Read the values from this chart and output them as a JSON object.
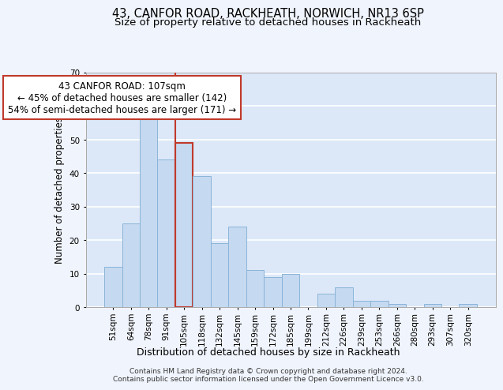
{
  "title1": "43, CANFOR ROAD, RACKHEATH, NORWICH, NR13 6SP",
  "title2": "Size of property relative to detached houses in Rackheath",
  "xlabel": "Distribution of detached houses by size in Rackheath",
  "ylabel": "Number of detached properties",
  "categories": [
    "51sqm",
    "64sqm",
    "78sqm",
    "91sqm",
    "105sqm",
    "118sqm",
    "132sqm",
    "145sqm",
    "159sqm",
    "172sqm",
    "185sqm",
    "199sqm",
    "212sqm",
    "226sqm",
    "239sqm",
    "253sqm",
    "266sqm",
    "280sqm",
    "293sqm",
    "307sqm",
    "320sqm"
  ],
  "values": [
    12,
    25,
    57,
    44,
    49,
    39,
    19,
    24,
    11,
    9,
    10,
    0,
    4,
    6,
    2,
    2,
    1,
    0,
    1,
    0,
    1
  ],
  "bar_color": "#c5d9f0",
  "bar_edge_color": "#8ab4d8",
  "highlight_bar_index": 4,
  "highlight_bar_color": "#c5d9f0",
  "highlight_bar_edge_color": "#c0392b",
  "vline_color": "#c0392b",
  "ylim": [
    0,
    70
  ],
  "yticks": [
    0,
    10,
    20,
    30,
    40,
    50,
    60,
    70
  ],
  "annotation_text": "43 CANFOR ROAD: 107sqm\n← 45% of detached houses are smaller (142)\n54% of semi-detached houses are larger (171) →",
  "annotation_box_color": "#ffffff",
  "annotation_box_edge_color": "#c0392b",
  "footer_text": "Contains HM Land Registry data © Crown copyright and database right 2024.\nContains public sector information licensed under the Open Government Licence v3.0.",
  "fig_background_color": "#f0f4fc",
  "plot_background_color": "#dce8f8",
  "grid_color": "#ffffff",
  "title1_fontsize": 10.5,
  "title2_fontsize": 9.5,
  "xlabel_fontsize": 9,
  "ylabel_fontsize": 8.5,
  "tick_fontsize": 7.5,
  "annotation_fontsize": 8.5,
  "footer_fontsize": 6.5
}
